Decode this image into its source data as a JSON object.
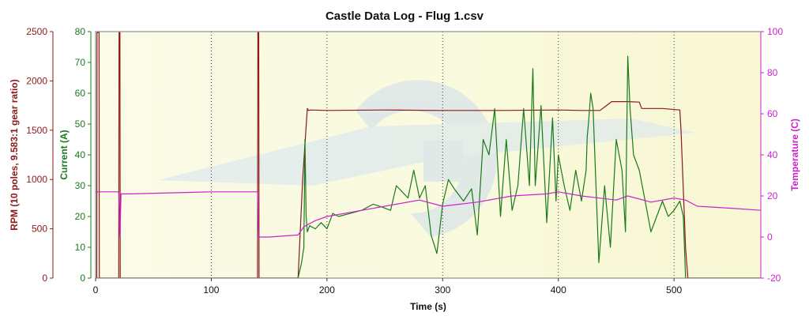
{
  "chart_data": {
    "type": "line",
    "title": "Castle Data Log - Flug 1.csv",
    "xlabel": "Time (s)",
    "xlim": [
      0,
      575
    ],
    "x_ticks": [
      0,
      100,
      200,
      300,
      400,
      500
    ],
    "colors": {
      "rpm": "#8b1a1a",
      "current": "#1a7a1a",
      "temperature": "#cc22cc",
      "plot_bg": "#fafadc",
      "grid": "#333333"
    },
    "axes": [
      {
        "id": "rpm",
        "label": "RPM (10 poles, 9.583:1 gear ratio)",
        "side": "left",
        "ylim": [
          0,
          2500
        ],
        "ticks": [
          0,
          500,
          1000,
          1500,
          2000,
          2500
        ]
      },
      {
        "id": "current",
        "label": "Current (A)",
        "side": "left",
        "ylim": [
          0,
          80
        ],
        "ticks": [
          0,
          10,
          20,
          30,
          40,
          50,
          60,
          70,
          80
        ]
      },
      {
        "id": "temperature",
        "label": "Temperature (C)",
        "side": "right",
        "ylim": [
          -20,
          100
        ],
        "ticks": [
          -20,
          0,
          20,
          40,
          60,
          80,
          100
        ]
      }
    ],
    "series": [
      {
        "axis": "rpm",
        "x": [
          0,
          1,
          1.2,
          3,
          3.2,
          20,
          20.3,
          21,
          21.3,
          22,
          140,
          140.3,
          141,
          141.3,
          142,
          175,
          179,
          183,
          184,
          186,
          200,
          250,
          300,
          350,
          400,
          420,
          436,
          445,
          446,
          460,
          470,
          472,
          490,
          505,
          506,
          510,
          512,
          575
        ],
        "values": [
          0,
          0,
          2490,
          2490,
          0,
          0,
          2490,
          2490,
          0,
          0,
          0,
          2490,
          2490,
          0,
          0,
          0,
          1000,
          1720,
          1700,
          1705,
          1700,
          1705,
          1700,
          1700,
          1705,
          1700,
          1700,
          1780,
          1790,
          1790,
          1785,
          1720,
          1720,
          1705,
          1500,
          300,
          0,
          0
        ]
      },
      {
        "axis": "current",
        "x": [
          0,
          175,
          178,
          180,
          181,
          182,
          183,
          185,
          190,
          195,
          200,
          205,
          210,
          220,
          230,
          240,
          248,
          255,
          260,
          270,
          275,
          280,
          285,
          290,
          295,
          300,
          305,
          310,
          318,
          325,
          330,
          335,
          340,
          345,
          350,
          355,
          360,
          365,
          370,
          375,
          378,
          380,
          385,
          390,
          395,
          398,
          400,
          405,
          410,
          415,
          420,
          424,
          425,
          426,
          428,
          430,
          435,
          440,
          445,
          450,
          455,
          458,
          460,
          462,
          465,
          470,
          475,
          480,
          485,
          490,
          495,
          500,
          505,
          508,
          510,
          575
        ],
        "values": [
          0,
          0,
          5,
          10,
          45,
          20,
          15,
          17,
          16,
          18,
          16,
          21,
          20,
          21,
          22,
          24,
          23,
          22,
          30,
          26,
          35,
          26,
          30,
          14,
          8,
          24,
          32,
          29,
          25,
          29,
          14,
          45,
          40,
          55,
          20,
          45,
          22,
          30,
          55,
          30,
          68,
          30,
          56,
          18,
          52,
          25,
          40,
          30,
          22,
          35,
          25,
          35,
          46,
          50,
          60,
          55,
          5,
          30,
          10,
          45,
          35,
          15,
          72,
          55,
          40,
          35,
          25,
          15,
          20,
          25,
          20,
          22,
          25,
          20,
          0,
          0
        ]
      },
      {
        "axis": "temperature",
        "x": [
          0,
          20,
          21,
          22,
          30,
          100,
          140,
          141,
          150,
          175,
          180,
          190,
          200,
          220,
          250,
          280,
          300,
          330,
          360,
          390,
          400,
          420,
          450,
          460,
          480,
          500,
          510,
          520,
          550,
          575
        ],
        "values": [
          22,
          22,
          0,
          21,
          21,
          22,
          22,
          0,
          0,
          1,
          5,
          8,
          10,
          12,
          15,
          18,
          15,
          17,
          20,
          21,
          22,
          20,
          18,
          20,
          17,
          19,
          18,
          15,
          14,
          13
        ]
      }
    ]
  }
}
